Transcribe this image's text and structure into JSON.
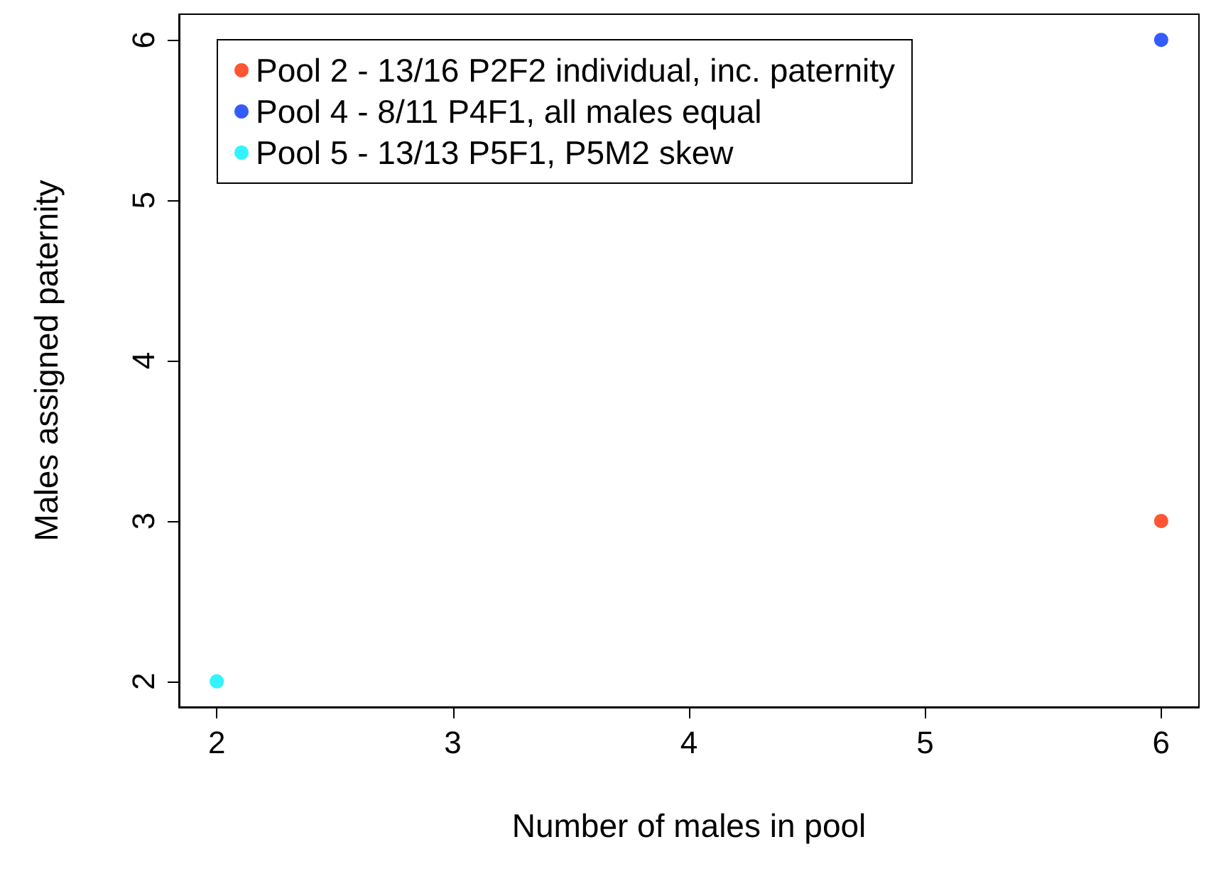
{
  "chart_data": {
    "type": "scatter",
    "xlabel": "Number of males in pool",
    "ylabel": "Males assigned paternity",
    "xlim": [
      1.84,
      6.16
    ],
    "xticks": [
      2,
      3,
      4,
      5,
      6
    ],
    "ylim": [
      1.84,
      6.16
    ],
    "yticks": [
      2,
      3,
      4,
      5,
      6
    ],
    "x": [
      2,
      6
    ],
    "series": [
      {
        "name": "Pool 2 - 13/16 P2F2 individual, inc. paternity",
        "color": "#ff2a00",
        "values": [
          null,
          3
        ]
      },
      {
        "name": "Pool 4 - 8/11 P4F1, all males equal",
        "color": "#0033ff",
        "values": [
          null,
          6
        ]
      },
      {
        "name": "Pool 5 - 13/13 P5F1, P5M2 skew",
        "color": "#00f0ff",
        "values": [
          2,
          null
        ]
      }
    ],
    "legend": "top left",
    "marker": "circle",
    "grid": false
  }
}
